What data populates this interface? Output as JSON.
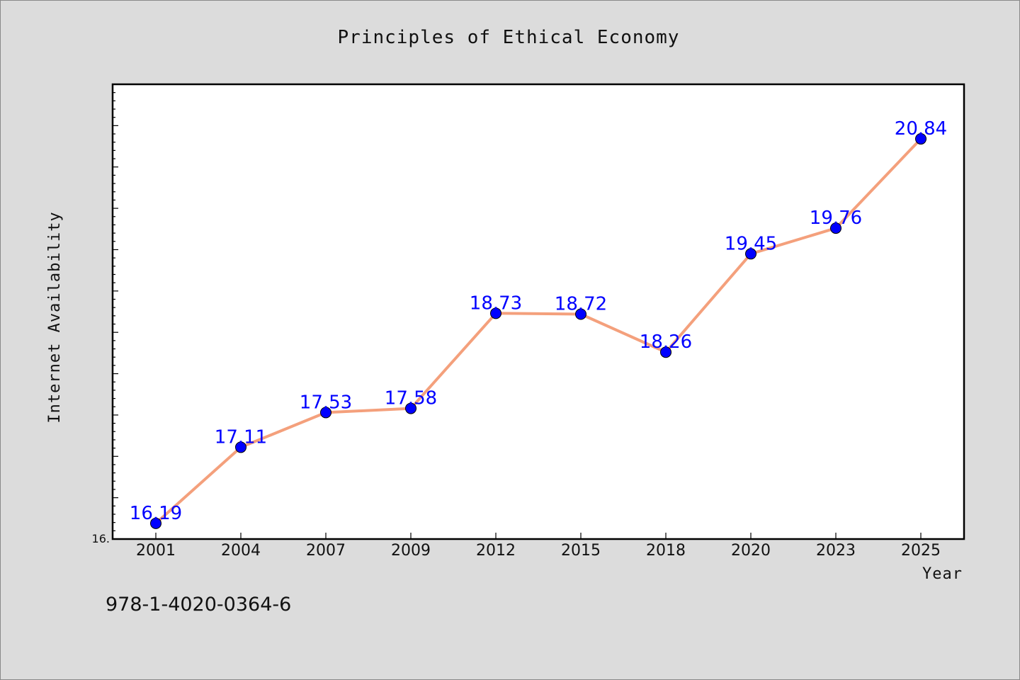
{
  "chart_data": {
    "type": "line",
    "title": "Principles of Ethical Economy",
    "xlabel": "Year",
    "ylabel": "Internet Availability",
    "categories": [
      "2001",
      "2004",
      "2007",
      "2009",
      "2012",
      "2015",
      "2018",
      "2020",
      "2023",
      "2025"
    ],
    "series": [
      {
        "values": [
          16.19,
          17.11,
          17.53,
          17.58,
          18.73,
          18.72,
          18.26,
          19.45,
          19.76,
          20.84
        ]
      }
    ],
    "data_labels": [
      "16.19",
      "17.11",
      "17.53",
      "17.58",
      "18.73",
      "18.72",
      "18.26",
      "19.45",
      "19.76",
      "20.84"
    ],
    "y_tick_labels": [
      "16."
    ],
    "ylim": [
      16.0,
      21.5
    ],
    "grid": false,
    "colors": {
      "line": "#f4a07c",
      "marker": "#0000ff",
      "data_label": "#0000ff",
      "plot_background": "#ffffff",
      "figure_background": "#dcdcdc"
    }
  },
  "footer": {
    "isbn": "978-1-4020-0364-6"
  }
}
